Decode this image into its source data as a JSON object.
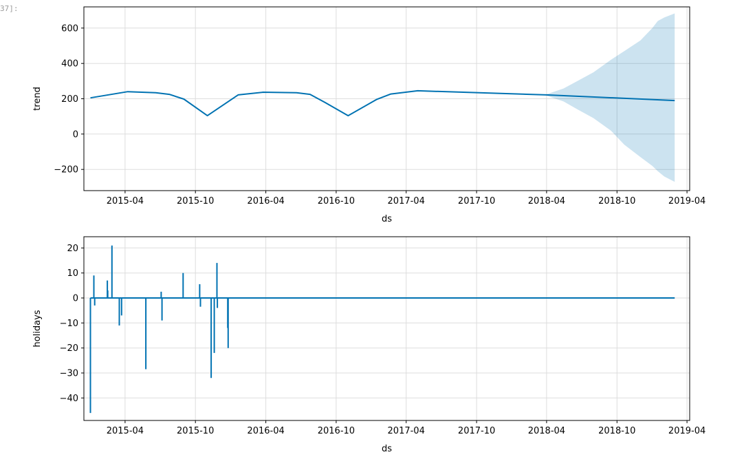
{
  "cell": {
    "prompt": "37]:"
  },
  "colors": {
    "line": "#0072B2",
    "band": "#0072B2",
    "grid": "#dddddd",
    "axis": "#000000"
  },
  "chart_data": [
    {
      "type": "area",
      "ylabel": "trend",
      "xlabel": "ds",
      "ylim": [
        -320,
        720
      ],
      "yticks": [
        600,
        400,
        200,
        0,
        -200
      ],
      "ytick_labels": [
        "600",
        "400",
        "200",
        "0",
        "−200"
      ],
      "xlim": [
        "2014-12-15",
        "2019-04-08"
      ],
      "xticks": [
        "2015-04-01",
        "2015-10-01",
        "2016-04-01",
        "2016-10-01",
        "2017-04-01",
        "2017-10-01",
        "2018-04-01",
        "2018-10-01",
        "2019-04-01"
      ],
      "xtick_labels": [
        "2015-04",
        "2015-10",
        "2016-04",
        "2016-10",
        "2017-04",
        "2017-10",
        "2018-04",
        "2018-10",
        "2019-04"
      ],
      "grid": true,
      "series": [
        {
          "x": [
            "2015-01-01",
            "2015-04-08",
            "2015-06-20",
            "2015-07-25",
            "2015-09-01",
            "2015-11-01",
            "2016-01-20",
            "2016-03-25",
            "2016-06-20",
            "2016-07-25",
            "2016-09-01",
            "2016-11-01",
            "2017-01-15",
            "2017-02-20",
            "2017-05-01",
            "2018-03-31",
            "2019-02-28"
          ],
          "y": [
            205,
            240,
            234,
            225,
            198,
            104,
            222,
            237,
            234,
            225,
            180,
            104,
            197,
            227,
            245,
            222,
            190
          ]
        }
      ],
      "uncertainty": {
        "x": [
          "2018-03-31",
          "2018-05-15",
          "2018-06-20",
          "2018-08-01",
          "2018-09-15",
          "2018-10-20",
          "2018-12-01",
          "2019-01-01",
          "2019-01-15",
          "2019-02-01",
          "2019-02-28"
        ],
        "upper": [
          225,
          258,
          300,
          350,
          420,
          470,
          530,
          600,
          640,
          660,
          683
        ],
        "lower": [
          218,
          185,
          140,
          90,
          20,
          -60,
          -130,
          -180,
          -210,
          -240,
          -270
        ]
      }
    },
    {
      "type": "line",
      "ylabel": "holidays",
      "xlabel": "ds",
      "ylim": [
        -49,
        24.5
      ],
      "yticks": [
        20,
        10,
        0,
        -10,
        -20,
        -30,
        -40
      ],
      "ytick_labels": [
        "20",
        "10",
        "0",
        "−10",
        "−20",
        "−30",
        "−40"
      ],
      "xlim": [
        "2014-12-15",
        "2019-04-08"
      ],
      "xticks": [
        "2015-04-01",
        "2015-10-01",
        "2016-04-01",
        "2016-10-01",
        "2017-04-01",
        "2017-10-01",
        "2018-04-01",
        "2018-10-01",
        "2019-04-01"
      ],
      "xtick_labels": [
        "2015-04",
        "2015-10",
        "2016-04",
        "2016-10",
        "2017-04",
        "2017-10",
        "2018-04",
        "2018-10",
        "2019-04"
      ],
      "grid": true,
      "baseline": {
        "x": [
          "2015-01-01",
          "2019-02-28"
        ],
        "y": 0
      },
      "spikes": [
        {
          "x": "2015-01-01",
          "y": -46
        },
        {
          "x": "2015-01-01",
          "y": -30
        },
        {
          "x": "2015-01-10",
          "y": 9
        },
        {
          "x": "2015-01-12",
          "y": -3
        },
        {
          "x": "2015-02-14",
          "y": 7
        },
        {
          "x": "2015-02-15",
          "y": 3
        },
        {
          "x": "2015-02-26",
          "y": 21
        },
        {
          "x": "2015-03-17",
          "y": -11
        },
        {
          "x": "2015-03-23",
          "y": -7
        },
        {
          "x": "2015-05-25",
          "y": -28.5
        },
        {
          "x": "2015-07-04",
          "y": 2.5
        },
        {
          "x": "2015-07-06",
          "y": -9
        },
        {
          "x": "2015-08-30",
          "y": 10
        },
        {
          "x": "2015-10-12",
          "y": 5.5
        },
        {
          "x": "2015-10-14",
          "y": -3.5
        },
        {
          "x": "2015-11-11",
          "y": -32
        },
        {
          "x": "2015-11-19",
          "y": -22
        },
        {
          "x": "2015-11-26",
          "y": 14
        },
        {
          "x": "2015-11-27",
          "y": -4
        },
        {
          "x": "2015-12-24",
          "y": -12
        },
        {
          "x": "2015-12-25",
          "y": -20
        }
      ]
    }
  ]
}
